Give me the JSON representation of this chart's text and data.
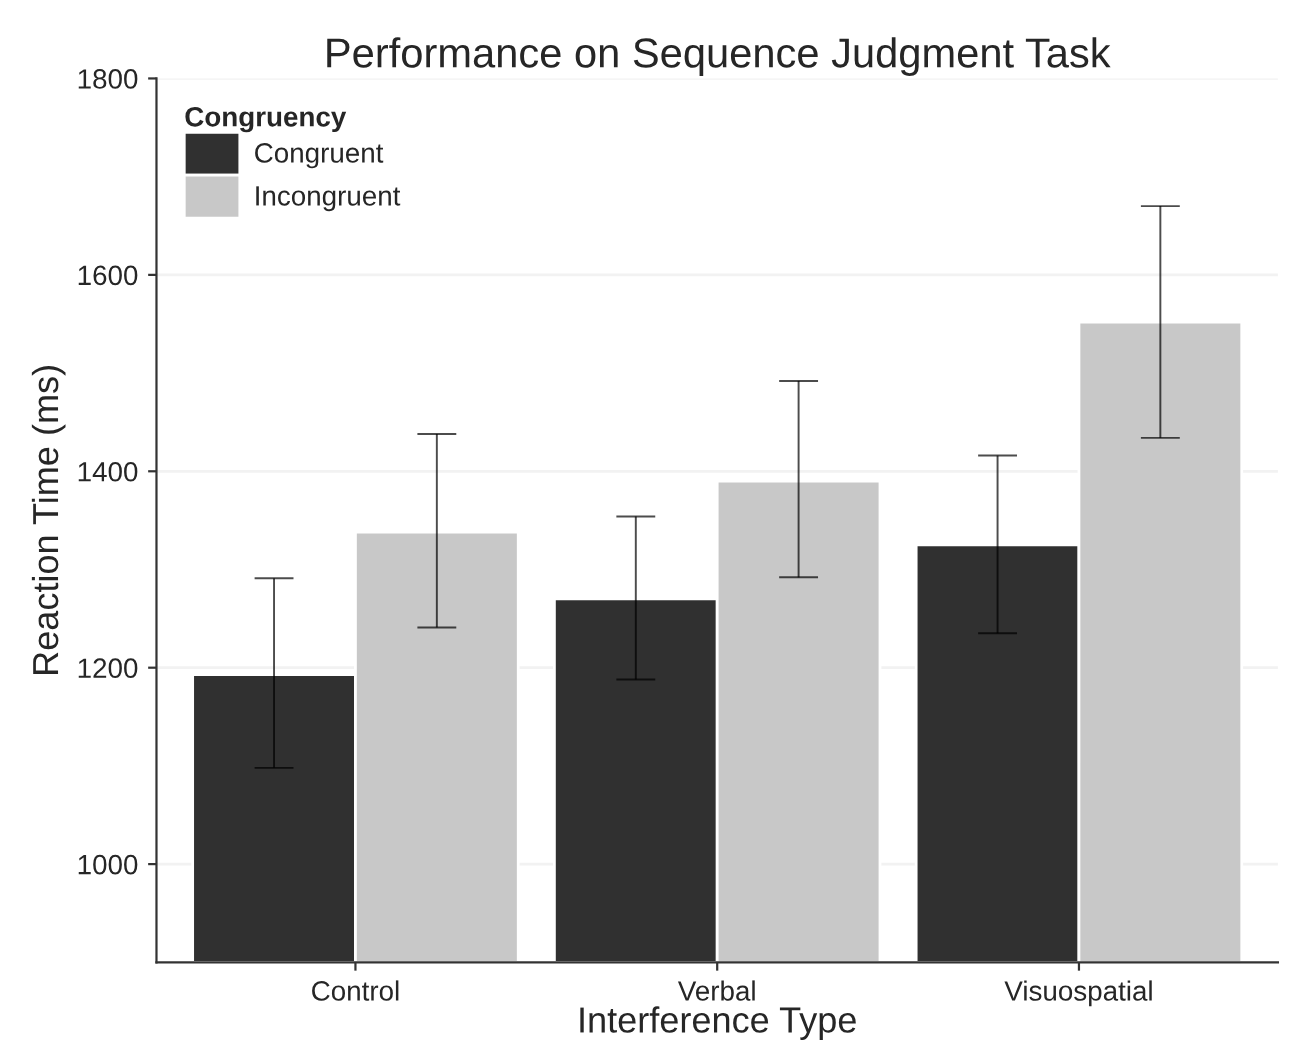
{
  "chart_data": {
    "type": "bar",
    "title": "Performance on Sequence Judgment Task",
    "xlabel": "Interference Type",
    "ylabel": "Reaction Time (ms)",
    "legend_title": "Congruency",
    "categories": [
      "Control",
      "Verbal",
      "Visuospatial"
    ],
    "series": [
      {
        "name": "Congruent",
        "color": "#303030",
        "values": [
          1193,
          1270,
          1325
        ],
        "errors": [
          [
            1098,
            1291
          ],
          [
            1188,
            1354
          ],
          [
            1235,
            1416
          ]
        ]
      },
      {
        "name": "Incongruent",
        "color": "#c8c8c8",
        "values": [
          1338,
          1390,
          1552
        ],
        "errors": [
          [
            1241,
            1438
          ],
          [
            1292,
            1492
          ],
          [
            1434,
            1670
          ]
        ]
      }
    ],
    "ylim": [
      900,
      1800
    ],
    "yticks": [
      1000,
      1200,
      1400,
      1600,
      1800
    ],
    "grid": "y",
    "legend": "top left"
  }
}
